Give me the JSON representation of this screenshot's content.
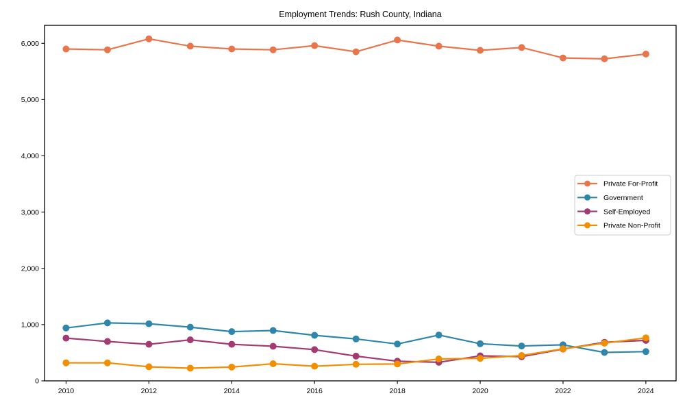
{
  "title": "Employment Trends: Rush County, Indiana",
  "chart_data": {
    "type": "line",
    "x": [
      2010,
      2011,
      2012,
      2013,
      2014,
      2015,
      2016,
      2017,
      2018,
      2019,
      2020,
      2021,
      2022,
      2023,
      2024
    ],
    "series": [
      {
        "name": "Private For-Profit",
        "color": "#E8764C",
        "values": [
          5900,
          5885,
          6080,
          5950,
          5900,
          5885,
          5960,
          5850,
          6060,
          5950,
          5875,
          5925,
          5740,
          5725,
          5810
        ]
      },
      {
        "name": "Government",
        "color": "#2E86AB",
        "values": [
          940,
          1030,
          1015,
          955,
          875,
          895,
          810,
          745,
          655,
          815,
          660,
          620,
          640,
          505,
          520
        ]
      },
      {
        "name": "Self-Employed",
        "color": "#A23B72",
        "values": [
          760,
          700,
          650,
          730,
          650,
          615,
          555,
          440,
          350,
          330,
          445,
          430,
          565,
          685,
          720
        ]
      },
      {
        "name": "Private Non-Profit",
        "color": "#F18F01",
        "values": [
          320,
          320,
          250,
          225,
          245,
          305,
          260,
          295,
          300,
          390,
          400,
          450,
          570,
          670,
          765
        ]
      }
    ],
    "xlabel": "",
    "ylabel": "",
    "xlim": [
      2009.48,
      2024.73
    ],
    "ylim": [
      0,
      6320
    ],
    "xticks": [
      2010,
      2012,
      2014,
      2016,
      2018,
      2020,
      2022,
      2024
    ],
    "yticks": [
      0,
      1000,
      2000,
      3000,
      4000,
      5000,
      6000
    ],
    "ytick_labels": [
      "0",
      "1,000",
      "2,000",
      "3,000",
      "4,000",
      "5,000",
      "6,000"
    ],
    "grid": false,
    "legend_position": "center right",
    "marker": "circle",
    "axis_color": "#000000",
    "legend_border_color": "#cccccc",
    "text_color": "#000000"
  }
}
